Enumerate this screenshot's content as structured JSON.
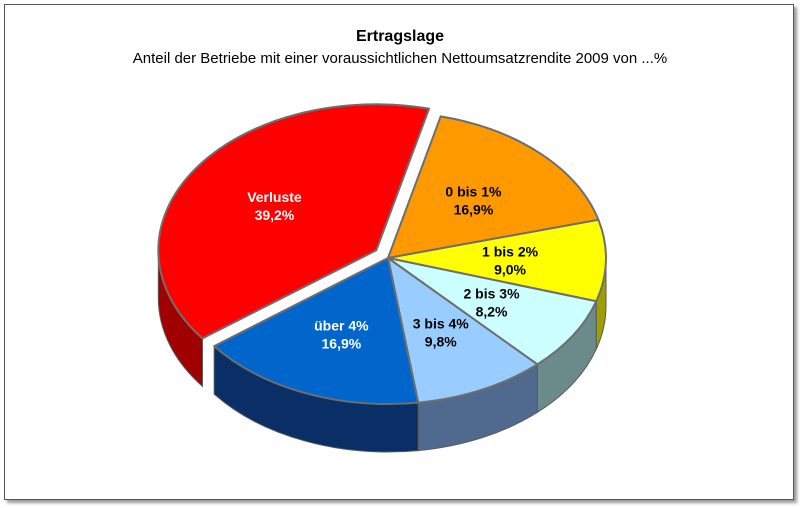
{
  "chart_data": {
    "type": "pie",
    "title": "Ertragslage",
    "subtitle": "Anteil der Betriebe mit einer voraussichtlichen Nettoumsatzrendite 2009 von ...%",
    "three_d": true,
    "slices": [
      {
        "label": "0 bis 1%",
        "value": 16.9,
        "value_text": "16,9%",
        "color": "#ff9900",
        "side_color": "#b86a00",
        "label_color": "#000000"
      },
      {
        "label": "1 bis 2%",
        "value": 9.0,
        "value_text": "9,0%",
        "color": "#ffff00",
        "side_color": "#9e9e00",
        "label_color": "#000000"
      },
      {
        "label": "2 bis 3%",
        "value": 8.2,
        "value_text": "8,2%",
        "color": "#ccffff",
        "side_color": "#6b8a8a",
        "label_color": "#000000"
      },
      {
        "label": "3 bis 4%",
        "value": 9.8,
        "value_text": "9,8%",
        "color": "#99ccff",
        "side_color": "#4f6a8e",
        "label_color": "#000000"
      },
      {
        "label": "über 4%",
        "value": 16.9,
        "value_text": "16,9%",
        "color": "#0066cc",
        "side_color": "#0a2f66",
        "label_color": "#ffffff"
      },
      {
        "label": "Verluste",
        "value": 39.2,
        "value_text": "39,2%",
        "color": "#ff0000",
        "side_color": "#a00000",
        "label_color": "#ffffff",
        "exploded": true
      }
    ]
  }
}
